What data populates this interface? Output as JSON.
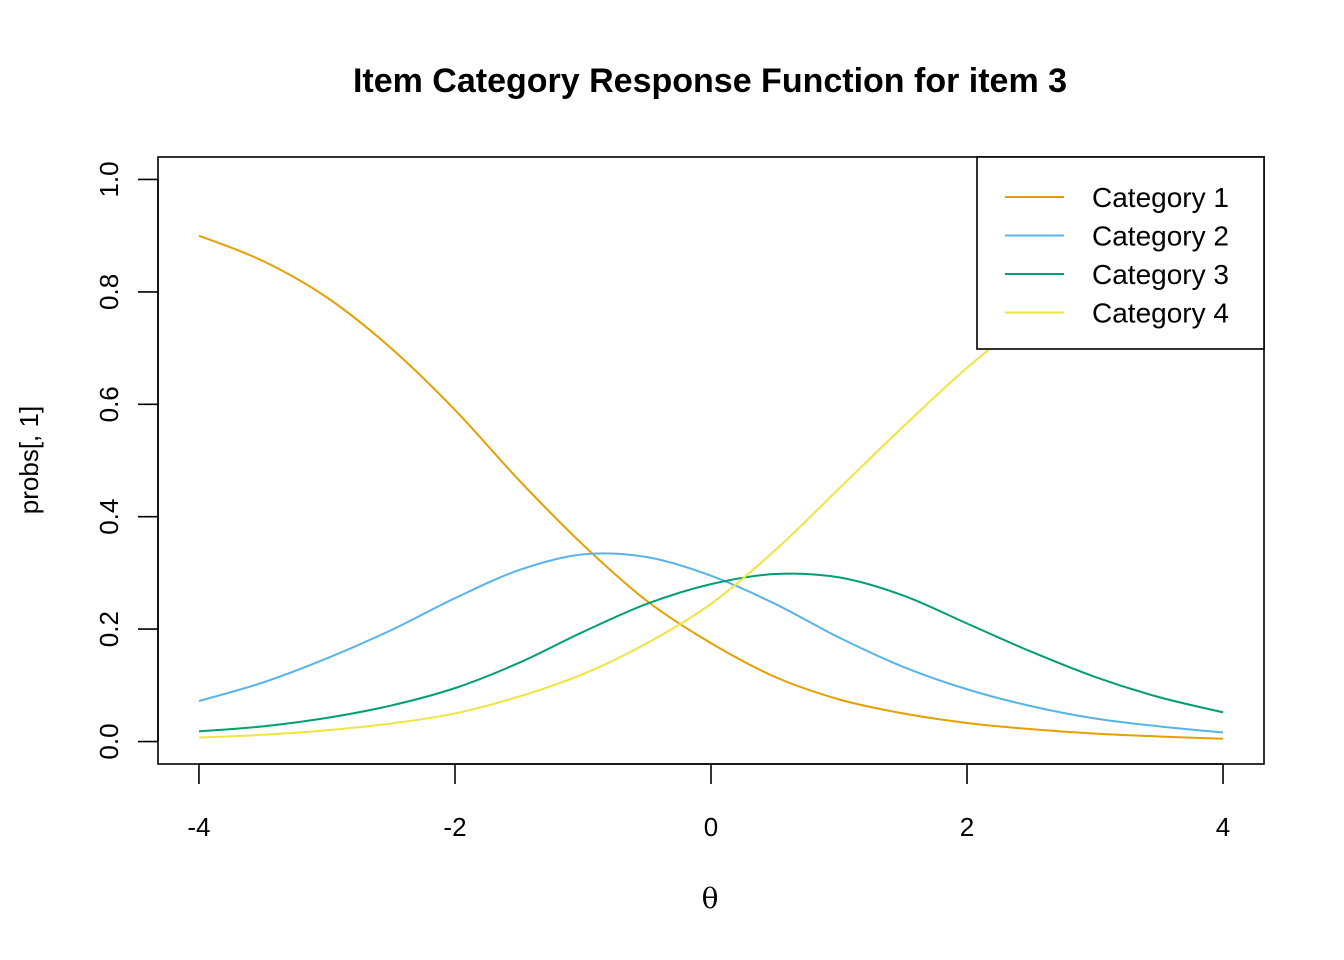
{
  "chart_data": {
    "type": "line",
    "title": "Item Category Response Function for item 3",
    "xlabel": "θ",
    "ylabel": "probs[, 1]",
    "xlim": [
      -4.32,
      4.32
    ],
    "ylim": [
      -0.04,
      1.04
    ],
    "xticks": [
      "-4",
      "-2",
      "0",
      "2",
      "4"
    ],
    "yticks": [
      "0.0",
      "0.2",
      "0.4",
      "0.6",
      "0.8",
      "1.0"
    ],
    "grid": false,
    "legend_position": "top-right",
    "series": [
      {
        "name": "Category 1",
        "color": "#E69F00",
        "x": [
          -4,
          -3.5,
          -3,
          -2.5,
          -2,
          -1.5,
          -1,
          -0.5,
          0,
          0.5,
          1,
          1.5,
          2,
          2.5,
          3,
          3.5,
          4
        ],
        "y": [
          0.9,
          0.855,
          0.79,
          0.7,
          0.59,
          0.465,
          0.35,
          0.25,
          0.175,
          0.115,
          0.075,
          0.05,
          0.033,
          0.022,
          0.014,
          0.009,
          0.005
        ]
      },
      {
        "name": "Category 2",
        "color": "#56B4E9",
        "x": [
          -4,
          -3.5,
          -3,
          -2.5,
          -2,
          -1.5,
          -1,
          -0.5,
          0,
          0.5,
          1,
          1.5,
          2,
          2.5,
          3,
          3.5,
          4
        ],
        "y": [
          0.072,
          0.105,
          0.148,
          0.198,
          0.255,
          0.305,
          0.333,
          0.328,
          0.295,
          0.245,
          0.185,
          0.133,
          0.093,
          0.063,
          0.041,
          0.027,
          0.016
        ]
      },
      {
        "name": "Category 3",
        "color": "#009E73",
        "x": [
          -4,
          -3.5,
          -3,
          -2.5,
          -2,
          -1.5,
          -1,
          -0.5,
          0,
          0.5,
          1,
          1.5,
          2,
          2.5,
          3,
          3.5,
          4
        ],
        "y": [
          0.018,
          0.027,
          0.042,
          0.064,
          0.095,
          0.14,
          0.195,
          0.245,
          0.28,
          0.298,
          0.292,
          0.26,
          0.21,
          0.16,
          0.115,
          0.079,
          0.052
        ]
      },
      {
        "name": "Category 4",
        "color": "#F0E442",
        "x": [
          -4,
          -3.5,
          -3,
          -2.5,
          -2,
          -1.5,
          -1,
          -0.5,
          0,
          0.5,
          1,
          1.5,
          2,
          2.5,
          3,
          3.5,
          4
        ],
        "y": [
          0.007,
          0.012,
          0.02,
          0.032,
          0.05,
          0.08,
          0.12,
          0.175,
          0.245,
          0.34,
          0.45,
          0.56,
          0.665,
          0.755,
          0.83,
          0.885,
          0.925
        ]
      }
    ]
  }
}
